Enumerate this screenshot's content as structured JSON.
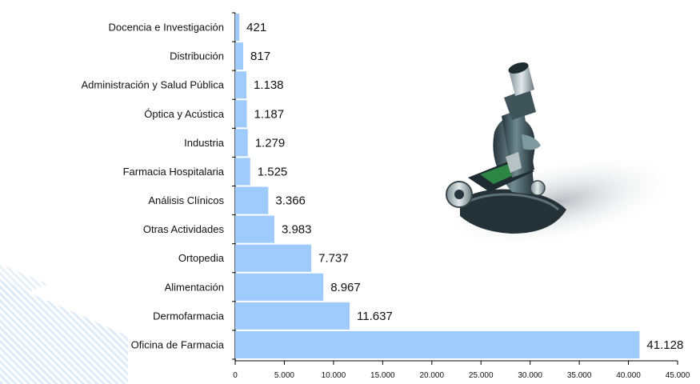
{
  "chart_data": {
    "type": "bar",
    "orientation": "horizontal",
    "categories": [
      "Docencia e Investigación",
      "Distribución",
      "Administración y Salud Pública",
      "Óptica y Acústica",
      "Industria",
      "Farmacia Hospitalaria",
      "Análisis Clínicos",
      "Otras Actividades",
      "Ortopedia",
      "Alimentación",
      "Dermofarmacia",
      "Oficina de Farmacia"
    ],
    "values": [
      421,
      817,
      1138,
      1187,
      1279,
      1525,
      3366,
      3983,
      7737,
      8967,
      11637,
      41128
    ],
    "value_labels": [
      "421",
      "817",
      "1.138",
      "1.187",
      "1.279",
      "1.525",
      "3.366",
      "3.983",
      "7.737",
      "8.967",
      "11.637",
      "41.128"
    ],
    "xlim": [
      0,
      45000
    ],
    "xticks": [
      0,
      5000,
      10000,
      15000,
      20000,
      25000,
      30000,
      35000,
      40000,
      45000
    ],
    "xtick_labels": [
      "0",
      "5.000",
      "10.000",
      "15.000",
      "20.000",
      "25.000",
      "30.000",
      "35.000",
      "40.000",
      "45.000"
    ],
    "grid": false,
    "colors": {
      "bar": "#9ecbfb",
      "axis": "#000000",
      "background_decor": "#dbe9f5"
    }
  },
  "decor": {
    "image_icon": "microscope-icon"
  }
}
